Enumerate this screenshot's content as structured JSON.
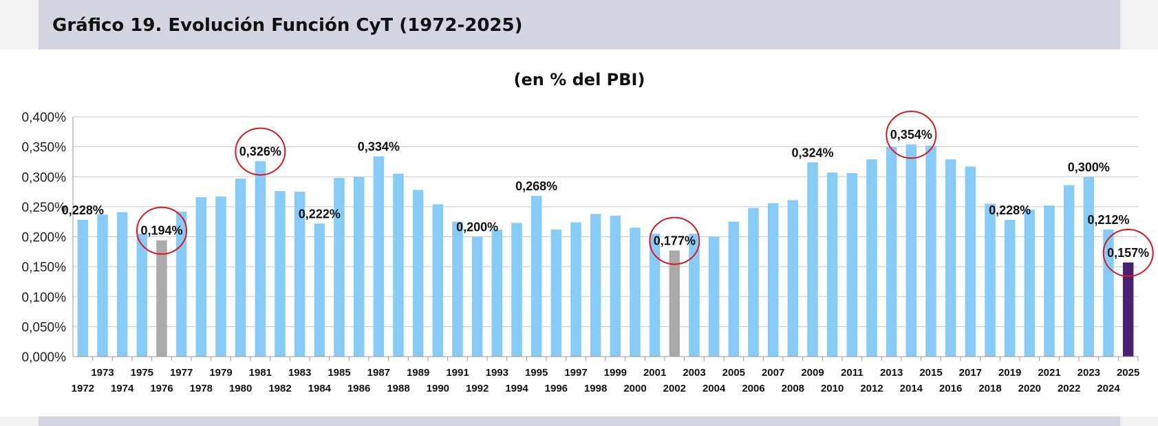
{
  "page": {
    "title": "Gráfico 19. Evolución Función CyT (1972-2025)"
  },
  "colors": {
    "bar_default": "#87cbf8",
    "bar_highlight_min": "#aaaaaa",
    "bar_current": "#4b1f71",
    "circle": "#e0151b",
    "grid": "#c8c8c8",
    "header_band": "#d3d6e0"
  },
  "chart_data": {
    "type": "bar",
    "title": "",
    "subtitle": "(en % del PBI)",
    "xlabel": "",
    "ylabel": "",
    "ylim": [
      0,
      0.4
    ],
    "y_tick_labels": [
      "0,000%",
      "0,050%",
      "0,100%",
      "0,150%",
      "0,200%",
      "0,250%",
      "0,300%",
      "0,350%",
      "0,400%"
    ],
    "grid": true,
    "legend": "none",
    "categories": [
      "1972",
      "1973",
      "1974",
      "1975",
      "1976",
      "1977",
      "1978",
      "1979",
      "1980",
      "1981",
      "1982",
      "1983",
      "1984",
      "1985",
      "1986",
      "1987",
      "1988",
      "1989",
      "1990",
      "1991",
      "1992",
      "1993",
      "1994",
      "1995",
      "1996",
      "1997",
      "1998",
      "1999",
      "2000",
      "2001",
      "2002",
      "2003",
      "2004",
      "2005",
      "2006",
      "2007",
      "2008",
      "2009",
      "2010",
      "2011",
      "2012",
      "2013",
      "2014",
      "2015",
      "2016",
      "2017",
      "2018",
      "2019",
      "2020",
      "2021",
      "2022",
      "2023",
      "2024",
      "2025"
    ],
    "values": [
      0.228,
      0.237,
      0.241,
      0.205,
      0.194,
      0.242,
      0.266,
      0.267,
      0.297,
      0.326,
      0.276,
      0.275,
      0.222,
      0.298,
      0.3,
      0.334,
      0.305,
      0.278,
      0.254,
      0.225,
      0.2,
      0.212,
      0.223,
      0.268,
      0.212,
      0.224,
      0.238,
      0.235,
      0.215,
      0.205,
      0.177,
      0.205,
      0.2,
      0.225,
      0.248,
      0.256,
      0.261,
      0.324,
      0.307,
      0.306,
      0.329,
      0.35,
      0.354,
      0.352,
      0.329,
      0.317,
      0.255,
      0.228,
      0.245,
      0.252,
      0.286,
      0.3,
      0.212,
      0.157
    ],
    "bar_types": {
      "1976": "gray",
      "2002": "gray",
      "2025": "dark"
    },
    "data_labels": [
      {
        "category": "1972",
        "text": "0,228%"
      },
      {
        "category": "1976",
        "text": "0,194%",
        "circled": true
      },
      {
        "category": "1981",
        "text": "0,326%",
        "circled": true
      },
      {
        "category": "1984",
        "text": "0,222%"
      },
      {
        "category": "1987",
        "text": "0,334%"
      },
      {
        "category": "1992",
        "text": "0,200%"
      },
      {
        "category": "1995",
        "text": "0,268%"
      },
      {
        "category": "2002",
        "text": "0,177%",
        "circled": true
      },
      {
        "category": "2009",
        "text": "0,324%"
      },
      {
        "category": "2014",
        "text": "0,354%",
        "circled": true
      },
      {
        "category": "2019",
        "text": "0,228%"
      },
      {
        "category": "2023",
        "text": "0,300%"
      },
      {
        "category": "2024",
        "text": "0,212%"
      },
      {
        "category": "2025",
        "text": "0,157%",
        "circled": true
      }
    ]
  }
}
